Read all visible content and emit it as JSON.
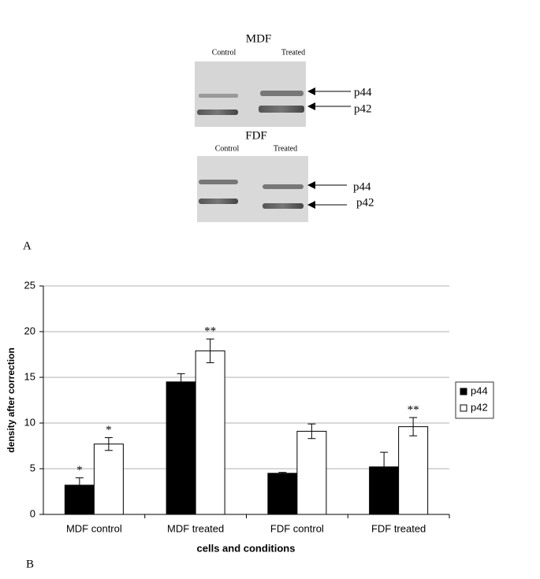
{
  "panel_labels": [
    "A",
    "B"
  ],
  "blot": {
    "panels": [
      {
        "title": "MDF",
        "lanes": [
          "Control",
          "Treated"
        ],
        "bands": [
          "p44",
          "p42"
        ]
      },
      {
        "title": "FDF",
        "lanes": [
          "Control",
          "Treated"
        ],
        "bands": [
          "p44",
          "p42"
        ]
      }
    ]
  },
  "chart_data": {
    "type": "bar",
    "x_label": "cells and conditions",
    "y_label": "density after correction",
    "categories": [
      "MDF control",
      "MDF treated",
      "FDF control",
      "FDF treated"
    ],
    "series": [
      {
        "name": "p44",
        "color": "#000000",
        "values": [
          3.2,
          14.5,
          4.5,
          5.2
        ],
        "errors": [
          0.8,
          0.9,
          0.1,
          1.6
        ]
      },
      {
        "name": "p42",
        "color": "#ffffff",
        "values": [
          7.7,
          17.9,
          9.1,
          9.6
        ],
        "errors": [
          0.7,
          1.3,
          0.8,
          1.0
        ]
      }
    ],
    "annotations": [
      {
        "text": "*",
        "series": "p44",
        "category": "MDF control"
      },
      {
        "text": "*",
        "series": "p42",
        "category": "MDF control"
      },
      {
        "text": "**",
        "series": "p42",
        "category": "MDF treated"
      },
      {
        "text": "**",
        "series": "p42",
        "category": "FDF treated"
      }
    ],
    "ylim": [
      0,
      25
    ],
    "yticks": [
      0,
      5,
      10,
      15,
      20,
      25
    ],
    "grid": true,
    "legend": "right"
  }
}
